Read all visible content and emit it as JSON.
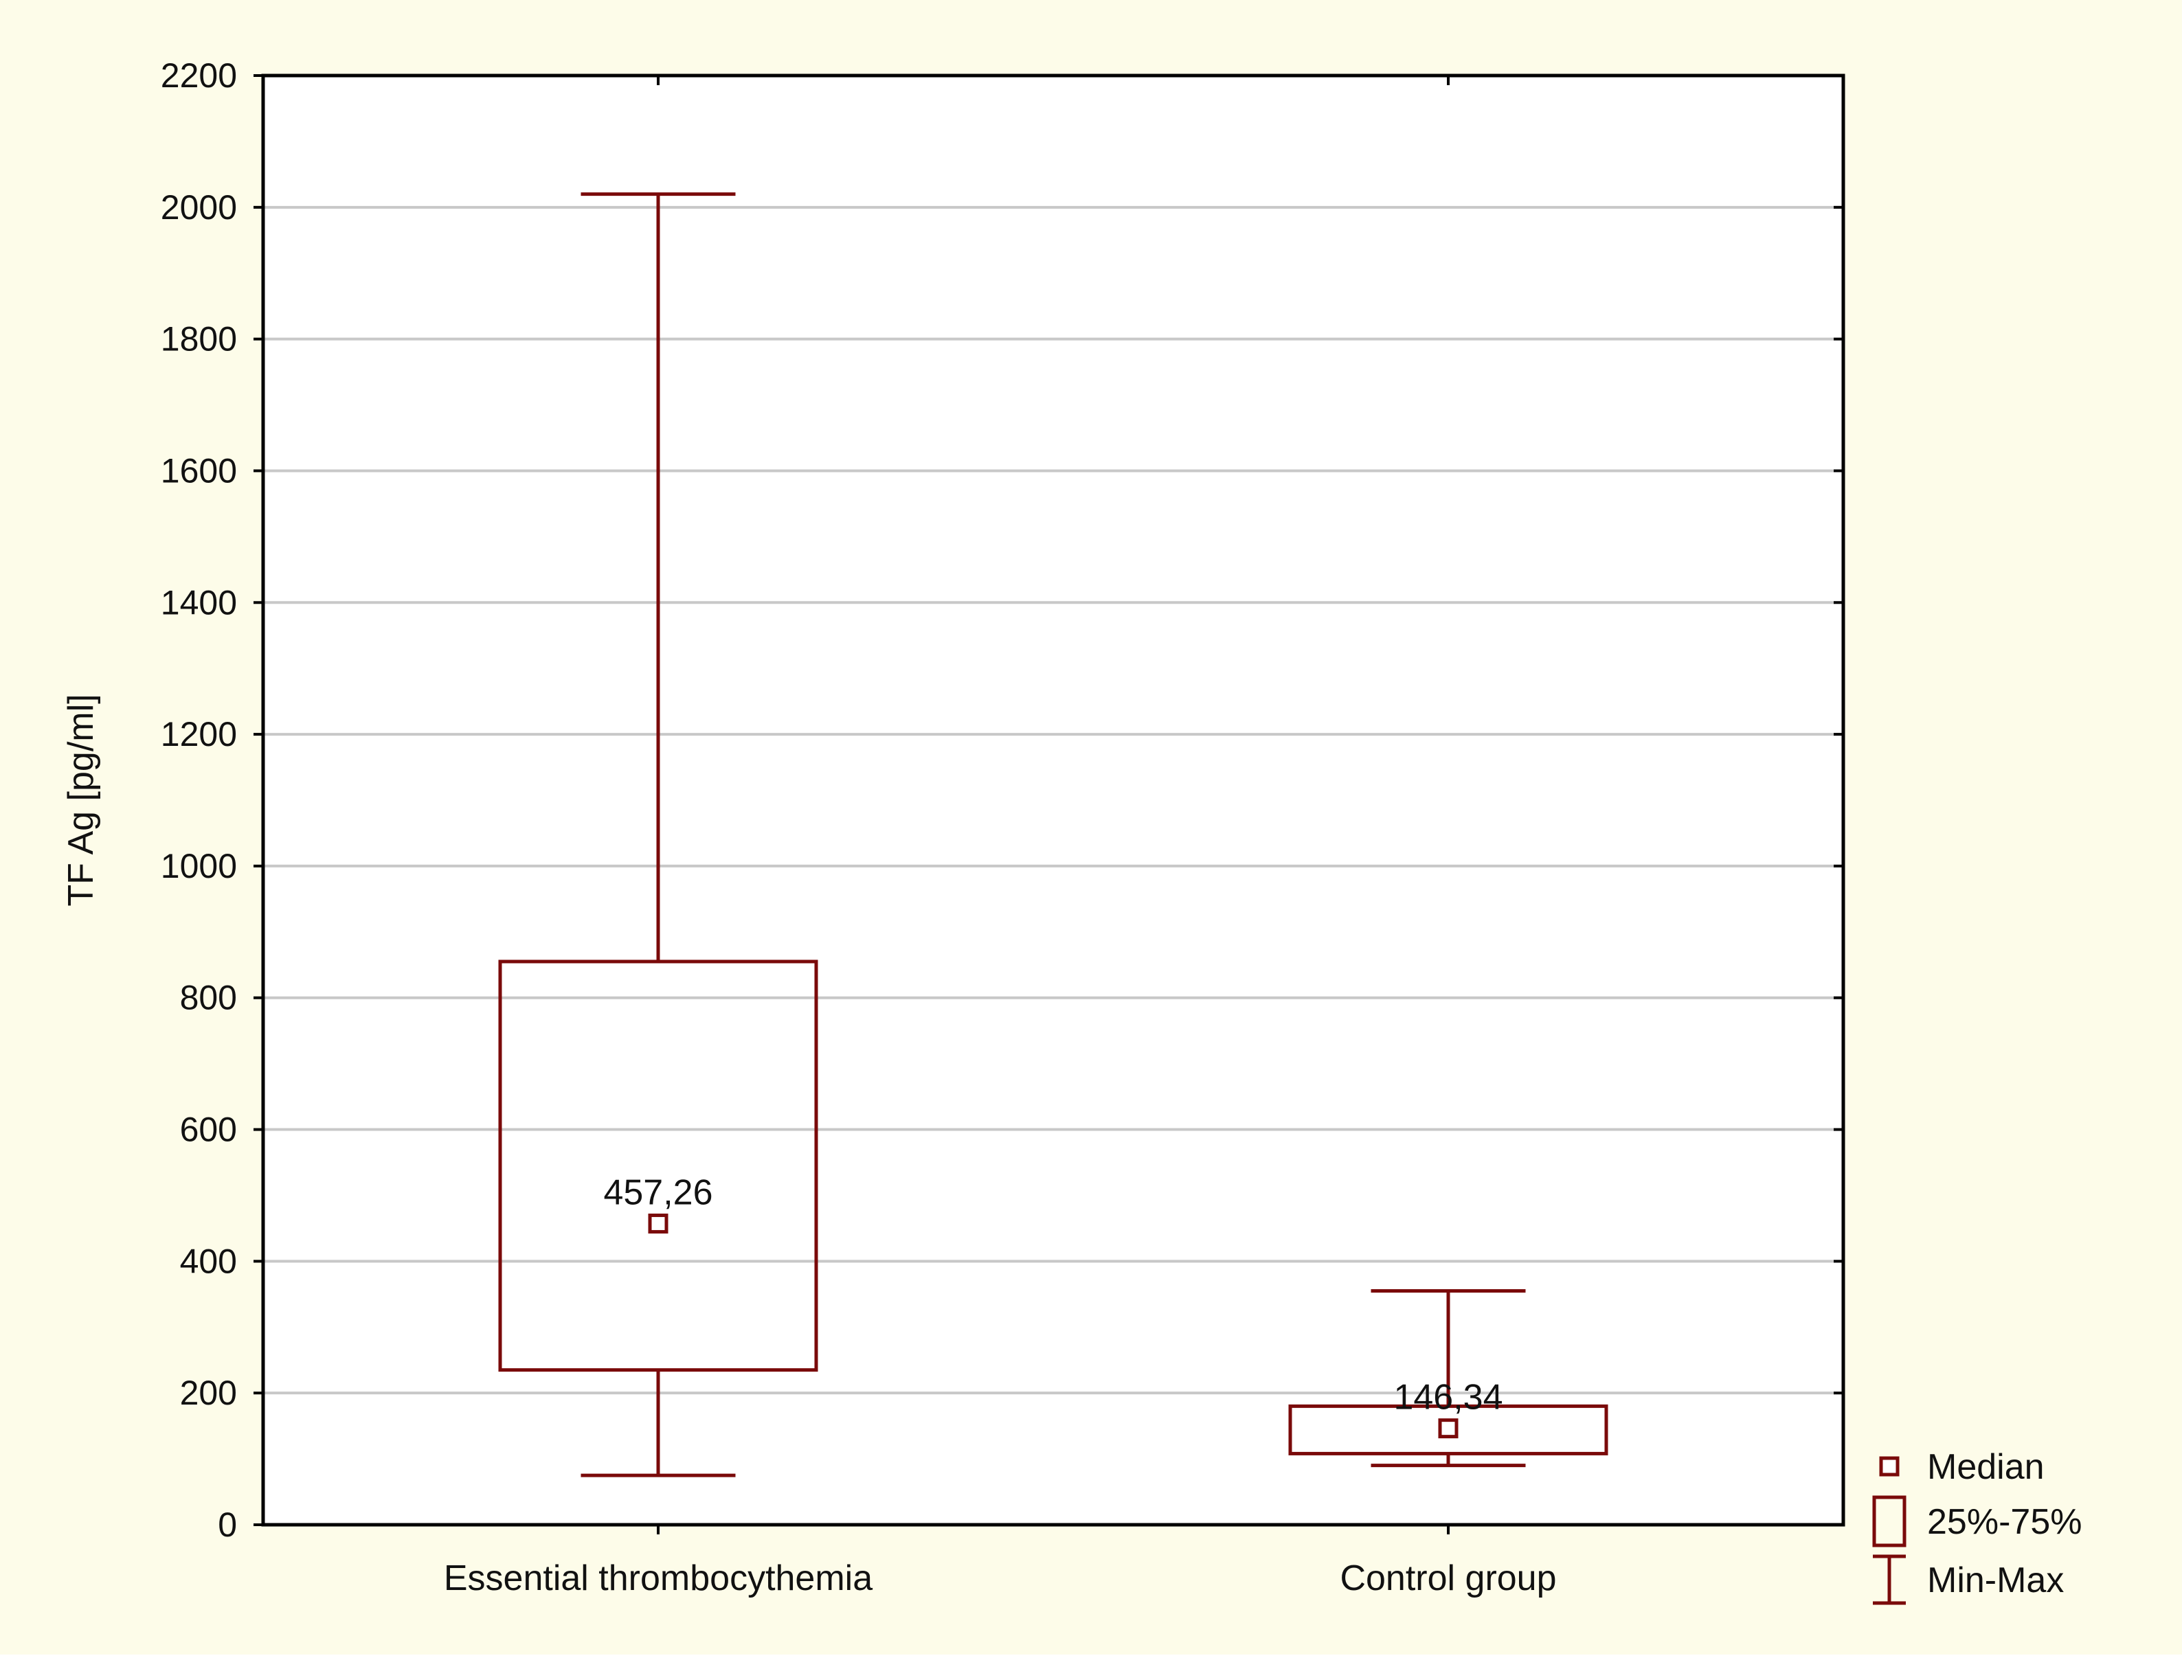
{
  "colors": {
    "background": "#fdfce9",
    "plot_background": "#ffffff",
    "grid": "#c8c8c8",
    "series": "#7a0a0a",
    "text": "#111111",
    "frame": "#000000"
  },
  "chart_data": {
    "type": "box",
    "title": "",
    "xlabel": "",
    "ylabel": "TF Ag [pg/ml]",
    "ylim": [
      0,
      2200
    ],
    "yticks": [
      "0",
      "200",
      "400",
      "600",
      "800",
      "1000",
      "1200",
      "1400",
      "1600",
      "1800",
      "2000",
      "2200"
    ],
    "grid": true,
    "legend_position": "bottom-right",
    "categories": [
      "Essential thrombocythemia",
      "Control group"
    ],
    "boxes": [
      {
        "category": "Essential thrombocythemia",
        "min": 75,
        "q1": 235,
        "median": 457.26,
        "q3": 855,
        "max": 2020,
        "median_label": "457,26"
      },
      {
        "category": "Control group",
        "min": 90,
        "q1": 108,
        "median": 146.34,
        "q3": 180,
        "max": 355,
        "median_label": "146,34"
      }
    ],
    "legend": [
      {
        "key": "median",
        "label": "Median",
        "icon": "small-square-icon"
      },
      {
        "key": "box",
        "label": "25%-75%",
        "icon": "rectangle-icon"
      },
      {
        "key": "whisker",
        "label": "Min-Max",
        "icon": "whisker-icon"
      }
    ]
  }
}
